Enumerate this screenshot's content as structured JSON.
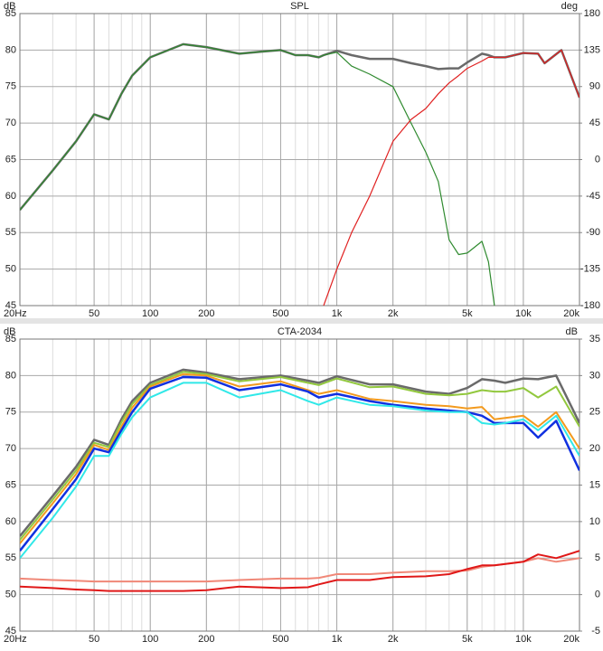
{
  "chart_data": [
    {
      "type": "line",
      "title": "SPL",
      "ylabel": "dB",
      "y2label": "deg",
      "log_x": true,
      "grid": true,
      "minor_grid": true,
      "x": [
        20,
        30,
        40,
        50,
        60,
        70,
        80,
        100,
        150,
        200,
        300,
        400,
        500,
        600,
        700,
        800,
        850,
        1000,
        1200,
        1500,
        2000,
        2500,
        3000,
        3500,
        4000,
        4500,
        5000,
        6000,
        6500,
        7000,
        8000,
        10000,
        12000,
        13000,
        16000,
        20000
      ],
      "xlim": [
        20,
        20000
      ],
      "xticks": [
        {
          "value": 20,
          "label": "20Hz"
        },
        50,
        100,
        200,
        500,
        {
          "value": 1000,
          "label": "1k"
        },
        {
          "value": 2000,
          "label": "2k"
        },
        {
          "value": 5000,
          "label": "5k"
        },
        {
          "value": 10000,
          "label": "10k"
        },
        {
          "value": 20000,
          "label": "20k"
        }
      ],
      "ylim": [
        45,
        85
      ],
      "yticks": [
        45,
        50,
        55,
        60,
        65,
        70,
        75,
        80,
        85
      ],
      "y2lim": [
        -180,
        180
      ],
      "y2ticks": [
        -180,
        -135,
        -90,
        -45,
        0,
        45,
        90,
        135,
        180
      ],
      "series": [
        {
          "color": "#6a6a6a",
          "width": 2.5,
          "values": [
            58.1,
            63.5,
            67.5,
            71.2,
            70.5,
            74,
            76.5,
            79,
            80.8,
            80.4,
            79.5,
            79.8,
            80,
            79.3,
            79.3,
            79,
            79.3,
            79.9,
            79.3,
            78.8,
            78.8,
            78.2,
            77.8,
            77.4,
            77.5,
            77.5,
            78.3,
            79.5,
            79.3,
            79,
            79,
            79.6,
            79.5,
            78.2,
            80,
            73.5
          ]
        },
        {
          "color": "#2f8a2f",
          "width": 1.2,
          "values": [
            58.1,
            63.5,
            67.5,
            71.2,
            70.5,
            74,
            76.5,
            79,
            80.8,
            80.4,
            79.5,
            79.8,
            80,
            79.3,
            79.3,
            79,
            79.3,
            79.7,
            77.8,
            76.7,
            75,
            70,
            66,
            62,
            54,
            52,
            52.2,
            53.8,
            51,
            45,
            null,
            null,
            null,
            null,
            null,
            null
          ]
        },
        {
          "color": "#e02020",
          "width": 1.2,
          "values": [
            null,
            null,
            null,
            null,
            null,
            null,
            null,
            null,
            null,
            null,
            null,
            null,
            null,
            null,
            null,
            null,
            45,
            50,
            55,
            60,
            67.5,
            70.5,
            72,
            74,
            75.5,
            76.5,
            77.5,
            78.5,
            79,
            79,
            79,
            79.6,
            79.5,
            78.2,
            80,
            73.5
          ]
        }
      ]
    },
    {
      "type": "line",
      "title": "CTA-2034",
      "ylabel": "dB",
      "y2label": "dB",
      "log_x": true,
      "grid": true,
      "minor_grid": true,
      "x": [
        20,
        30,
        40,
        50,
        60,
        70,
        80,
        100,
        150,
        200,
        300,
        500,
        700,
        800,
        1000,
        1500,
        2000,
        3000,
        4000,
        5000,
        6000,
        7000,
        8000,
        10000,
        12000,
        15000,
        20000
      ],
      "xlim": [
        20,
        20000
      ],
      "xticks": [
        {
          "value": 20,
          "label": "20Hz"
        },
        50,
        100,
        200,
        500,
        {
          "value": 1000,
          "label": "1k"
        },
        {
          "value": 2000,
          "label": "2k"
        },
        {
          "value": 5000,
          "label": "5k"
        },
        {
          "value": 10000,
          "label": "10k"
        },
        {
          "value": 20000,
          "label": "20k"
        }
      ],
      "ylim": [
        45,
        85
      ],
      "yticks": [
        45,
        50,
        55,
        60,
        65,
        70,
        75,
        80,
        85
      ],
      "y2lim": [
        -5,
        35
      ],
      "y2ticks": [
        -5,
        0,
        5,
        10,
        15,
        20,
        25,
        30,
        35
      ],
      "series": [
        {
          "color": "#6a6a6a",
          "width": 2.5,
          "values": [
            58,
            63.5,
            67.5,
            71.2,
            70.5,
            74,
            76.5,
            79,
            80.8,
            80.4,
            79.5,
            80,
            79.3,
            79,
            79.9,
            78.8,
            78.8,
            77.8,
            77.5,
            78.3,
            79.5,
            79.3,
            79,
            79.6,
            79.5,
            80,
            73.5
          ]
        },
        {
          "color": "#92c83e",
          "width": 2,
          "values": [
            57.5,
            63,
            67,
            70.8,
            70.2,
            73.6,
            76.1,
            78.7,
            80.5,
            80.2,
            79.2,
            79.8,
            79,
            78.7,
            79.6,
            78.4,
            78.5,
            77.5,
            77.3,
            77.5,
            78,
            77.8,
            77.8,
            78.3,
            77,
            78.5,
            73
          ]
        },
        {
          "color": "#f39a1e",
          "width": 2,
          "values": [
            57,
            62.5,
            66.5,
            70.5,
            69.8,
            73,
            75.6,
            78.5,
            80.2,
            80,
            78.5,
            79.2,
            78,
            77.5,
            78,
            76.8,
            76.5,
            76,
            75.8,
            75.5,
            75.7,
            74,
            74.2,
            74.5,
            73,
            75,
            70
          ]
        },
        {
          "color": "#1030e0",
          "width": 2.5,
          "values": [
            56,
            61.7,
            65.8,
            70,
            69.5,
            72.5,
            75,
            78.2,
            79.8,
            79.7,
            78,
            78.8,
            77.8,
            77,
            77.5,
            76.5,
            76,
            75.5,
            75.2,
            75,
            74.5,
            73.5,
            73.5,
            73.5,
            71.5,
            73.8,
            67
          ]
        },
        {
          "color": "#30e8e8",
          "width": 2,
          "values": [
            55,
            60.5,
            64.8,
            69,
            69,
            72,
            74.3,
            77,
            79,
            79,
            77,
            78,
            76.5,
            76,
            77,
            76,
            75.8,
            75.2,
            75,
            75,
            73.5,
            73.3,
            73.5,
            74,
            72.5,
            74.5,
            69
          ]
        },
        {
          "color": "#f08878",
          "width": 2,
          "axis": "y2",
          "values": [
            2.2,
            2,
            1.9,
            1.8,
            1.8,
            1.8,
            1.8,
            1.8,
            1.8,
            1.8,
            2,
            2.2,
            2.2,
            2.3,
            2.8,
            2.8,
            3,
            3.2,
            3.2,
            3.3,
            3.8,
            4,
            4.2,
            4.5,
            5,
            4.5,
            5
          ]
        },
        {
          "color": "#e01818",
          "width": 2,
          "axis": "y2",
          "values": [
            1.1,
            0.9,
            0.7,
            0.6,
            0.5,
            0.5,
            0.5,
            0.5,
            0.5,
            0.6,
            1.1,
            0.9,
            1,
            1.4,
            2,
            2,
            2.4,
            2.5,
            2.8,
            3.5,
            4,
            4,
            4.2,
            4.5,
            5.5,
            5,
            6
          ]
        }
      ]
    }
  ]
}
